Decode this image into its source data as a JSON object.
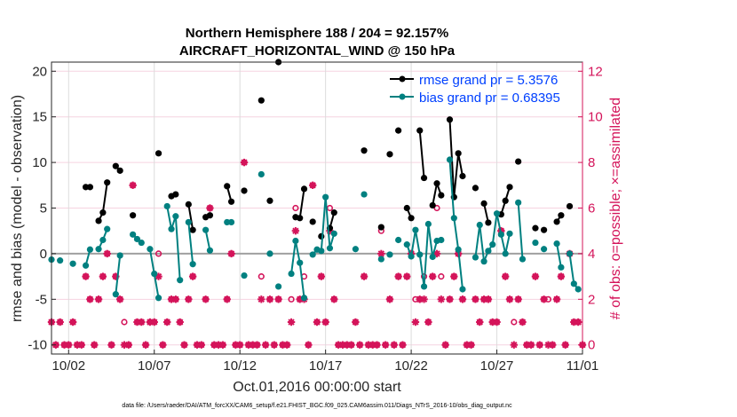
{
  "chart_data": {
    "type": "line",
    "title": "Northern Hemisphere 188 / 204 = 92.157%",
    "subtitle": "AIRCRAFT_HORIZONTAL_WIND @ 150 hPa",
    "xlabel": "Oct.01,2016 00:00:00 start",
    "ylabel": "rmse and bias (model - observation)",
    "ylabel_right": "# of obs: o=possible; ×=assimilated",
    "footnote": "data file: /Users/raeder/DAI/ATM_forcXX/CAM6_setup/f.e21.FHIST_BGC.f09_025.CAM6assim.011/Diags_NTrS_2016-10/obs_diag_output.nc",
    "xlim": [
      "2016-10-01T00:00",
      "2016-11-01T00:00"
    ],
    "x_ticks": [
      {
        "date": "2016-10-02T00:00",
        "label": "10/02"
      },
      {
        "date": "2016-10-07T00:00",
        "label": "10/07"
      },
      {
        "date": "2016-10-12T00:00",
        "label": "10/12"
      },
      {
        "date": "2016-10-17T00:00",
        "label": "10/17"
      },
      {
        "date": "2016-10-22T00:00",
        "label": "10/22"
      },
      {
        "date": "2016-10-27T00:00",
        "label": "10/27"
      },
      {
        "date": "2016-11-01T00:00",
        "label": "11/01"
      }
    ],
    "ylim": [
      -11,
      21
    ],
    "y_ticks": [
      "-10",
      "-5",
      "0",
      "5",
      "10",
      "15",
      "20"
    ],
    "ylim_right": [
      -0.4,
      12.4
    ],
    "y_ticks_right": [
      "0",
      "2",
      "4",
      "6",
      "8",
      "10",
      "12"
    ],
    "grid": true,
    "legend_position": "top-right",
    "colors": {
      "rmse": "#000000",
      "bias": "#008080",
      "obs": "#d4145a",
      "legend_text": "#0040ff",
      "zero_line": "#a0a0a0"
    },
    "series": [
      {
        "name": "rmse grand pr = 5.3576",
        "key": "rmse",
        "points": [
          [
            "2016-10-03T00:00",
            7.3
          ],
          [
            "2016-10-03T06:00",
            7.3
          ],
          [
            "2016-10-03T18:00",
            3.6
          ],
          [
            "2016-10-04T00:00",
            4.5
          ],
          [
            "2016-10-04T06:00",
            7.8
          ],
          [
            "2016-10-04T18:00",
            9.6
          ],
          [
            "2016-10-05T00:00",
            9.1
          ],
          [
            "2016-10-05T18:00",
            4.2
          ],
          [
            "2016-10-07T06:00",
            11.0
          ],
          [
            "2016-10-08T00:00",
            6.3
          ],
          [
            "2016-10-08T06:00",
            6.5
          ],
          [
            "2016-10-09T00:00",
            5.4
          ],
          [
            "2016-10-09T06:00",
            2.6
          ],
          [
            "2016-10-10T00:00",
            4.0
          ],
          [
            "2016-10-10T06:00",
            4.2
          ],
          [
            "2016-10-11T06:00",
            7.4
          ],
          [
            "2016-10-11T12:00",
            5.7
          ],
          [
            "2016-10-12T06:00",
            6.9
          ],
          [
            "2016-10-13T06:00",
            16.8
          ],
          [
            "2016-10-13T18:00",
            5.8
          ],
          [
            "2016-10-14T06:00",
            21.0
          ],
          [
            "2016-10-15T06:00",
            4.0
          ],
          [
            "2016-10-15T12:00",
            3.9
          ],
          [
            "2016-10-15T18:00",
            7.1
          ],
          [
            "2016-10-16T06:00",
            3.5
          ],
          [
            "2016-10-16T18:00",
            1.9
          ],
          [
            "2016-10-17T06:00",
            2.8
          ],
          [
            "2016-10-17T12:00",
            4.5
          ],
          [
            "2016-10-19T06:00",
            11.3
          ],
          [
            "2016-10-20T06:00",
            2.9
          ],
          [
            "2016-10-20T18:00",
            10.9
          ],
          [
            "2016-10-21T06:00",
            13.5
          ],
          [
            "2016-10-21T18:00",
            5.0
          ],
          [
            "2016-10-22T00:00",
            3.9
          ],
          [
            "2016-10-22T12:00",
            13.5
          ],
          [
            "2016-10-22T18:00",
            8.3
          ],
          [
            "2016-10-23T06:00",
            5.3
          ],
          [
            "2016-10-23T12:00",
            7.7
          ],
          [
            "2016-10-23T18:00",
            6.4
          ],
          [
            "2016-10-24T06:00",
            14.7
          ],
          [
            "2016-10-24T12:00",
            6.2
          ],
          [
            "2016-10-24T18:00",
            11.0
          ],
          [
            "2016-10-25T00:00",
            8.5
          ],
          [
            "2016-10-25T18:00",
            7.2
          ],
          [
            "2016-10-26T06:00",
            5.5
          ],
          [
            "2016-10-26T12:00",
            3.4
          ],
          [
            "2016-10-27T06:00",
            4.3
          ],
          [
            "2016-10-27T12:00",
            5.8
          ],
          [
            "2016-10-27T18:00",
            7.3
          ],
          [
            "2016-10-28T06:00",
            10.1
          ],
          [
            "2016-10-29T06:00",
            2.8
          ],
          [
            "2016-10-29T18:00",
            2.6
          ],
          [
            "2016-10-30T12:00",
            3.5
          ],
          [
            "2016-10-30T18:00",
            4.2
          ],
          [
            "2016-10-31T06:00",
            5.2
          ]
        ]
      },
      {
        "name": "bias grand pr = 0.68395",
        "key": "bias",
        "points": [
          [
            "2016-10-01T00:00",
            -0.65
          ],
          [
            "2016-10-01T12:00",
            -0.75
          ],
          [
            "2016-10-02T06:00",
            -1.1
          ],
          [
            "2016-10-03T00:00",
            -1.3
          ],
          [
            "2016-10-03T06:00",
            0.45
          ],
          [
            "2016-10-03T18:00",
            0.5
          ],
          [
            "2016-10-04T00:00",
            1.5
          ],
          [
            "2016-10-04T06:00",
            2.7
          ],
          [
            "2016-10-04T18:00",
            -4.45
          ],
          [
            "2016-10-05T00:00",
            -0.2
          ],
          [
            "2016-10-05T18:00",
            2.1
          ],
          [
            "2016-10-06T00:00",
            1.6
          ],
          [
            "2016-10-06T06:00",
            1.2
          ],
          [
            "2016-10-06T18:00",
            0.5
          ],
          [
            "2016-10-07T00:00",
            -2.2
          ],
          [
            "2016-10-07T06:00",
            -4.85
          ],
          [
            "2016-10-07T18:00",
            5.2
          ],
          [
            "2016-10-08T00:00",
            2.7
          ],
          [
            "2016-10-08T06:00",
            4.1
          ],
          [
            "2016-10-08T12:00",
            -2.9
          ],
          [
            "2016-10-09T00:00",
            3.45
          ],
          [
            "2016-10-09T06:00",
            -1.15
          ],
          [
            "2016-10-10T00:00",
            2.6
          ],
          [
            "2016-10-10T06:00",
            0.35
          ],
          [
            "2016-10-11T06:00",
            3.45
          ],
          [
            "2016-10-11T12:00",
            3.45
          ],
          [
            "2016-10-12T06:00",
            -2.4
          ],
          [
            "2016-10-13T06:00",
            8.7
          ],
          [
            "2016-10-13T18:00",
            0.0
          ],
          [
            "2016-10-14T06:00",
            -3.6
          ],
          [
            "2016-10-15T00:00",
            -2.2
          ],
          [
            "2016-10-15T06:00",
            1.4
          ],
          [
            "2016-10-15T12:00",
            -1.0
          ],
          [
            "2016-10-15T18:00",
            -4.85
          ],
          [
            "2016-10-16T06:00",
            -0.1
          ],
          [
            "2016-10-16T12:00",
            0.45
          ],
          [
            "2016-10-16T18:00",
            0.3
          ],
          [
            "2016-10-17T00:00",
            6.2
          ],
          [
            "2016-10-17T06:00",
            0.6
          ],
          [
            "2016-10-17T12:00",
            2.2
          ],
          [
            "2016-10-18T18:00",
            0.5
          ],
          [
            "2016-10-19T06:00",
            6.5
          ],
          [
            "2016-10-20T06:00",
            -0.6
          ],
          [
            "2016-10-20T18:00",
            -0.1
          ],
          [
            "2016-10-21T06:00",
            1.5
          ],
          [
            "2016-10-21T18:00",
            1.0
          ],
          [
            "2016-10-22T00:00",
            -0.3
          ],
          [
            "2016-10-22T06:00",
            2.6
          ],
          [
            "2016-10-22T12:00",
            -0.1
          ],
          [
            "2016-10-22T18:00",
            -3.6
          ],
          [
            "2016-10-23T00:00",
            3.25
          ],
          [
            "2016-10-23T06:00",
            -0.35
          ],
          [
            "2016-10-23T12:00",
            1.4
          ],
          [
            "2016-10-23T18:00",
            1.5
          ],
          [
            "2016-10-24T06:00",
            10.3
          ],
          [
            "2016-10-24T12:00",
            3.9
          ],
          [
            "2016-10-24T18:00",
            0.45
          ],
          [
            "2016-10-25T00:00",
            -3.9
          ],
          [
            "2016-10-25T18:00",
            -0.4
          ],
          [
            "2016-10-26T00:00",
            3.15
          ],
          [
            "2016-10-26T06:00",
            -0.85
          ],
          [
            "2016-10-26T12:00",
            0.3
          ],
          [
            "2016-10-26T18:00",
            1.0
          ],
          [
            "2016-10-27T00:00",
            4.4
          ],
          [
            "2016-10-27T06:00",
            2.1
          ],
          [
            "2016-10-27T12:00",
            0.0
          ],
          [
            "2016-10-27T18:00",
            2.2
          ],
          [
            "2016-10-28T06:00",
            5.6
          ],
          [
            "2016-10-28T12:00",
            -0.6
          ],
          [
            "2016-10-29T06:00",
            1.2
          ],
          [
            "2016-10-29T18:00",
            0.5
          ],
          [
            "2016-10-30T12:00",
            1.1
          ],
          [
            "2016-10-30T18:00",
            -1.5
          ],
          [
            "2016-10-31T06:00",
            0.0
          ],
          [
            "2016-10-31T12:00",
            -3.3
          ],
          [
            "2016-10-31T18:00",
            -3.9
          ]
        ]
      }
    ],
    "obs_counts": {
      "columns": [
        "time",
        "possible",
        "assimilated"
      ],
      "start": "2016-10-01T00:00",
      "step_hours": 6,
      "possible": [
        1,
        0,
        1,
        0,
        0,
        1,
        0,
        0,
        3,
        2,
        0,
        2,
        3,
        4,
        0,
        3,
        2,
        1,
        0,
        7,
        1,
        1,
        0,
        1,
        1,
        4,
        0,
        1,
        2,
        2,
        1,
        0,
        2,
        3,
        0,
        0,
        2,
        6,
        0,
        0,
        0,
        2,
        4,
        0,
        0,
        8,
        0,
        0,
        0,
        3,
        0,
        2,
        0,
        2,
        0,
        0,
        2,
        6,
        2,
        3,
        0,
        7,
        1,
        3,
        1,
        6,
        2,
        0,
        0,
        0,
        0,
        1,
        0,
        3,
        0,
        0,
        0,
        5,
        0,
        2,
        0,
        3,
        0,
        3,
        4,
        2,
        2,
        3,
        1,
        3,
        6,
        3,
        0,
        2,
        3,
        4,
        2,
        0,
        0,
        2,
        1,
        2,
        2,
        1,
        1,
        5,
        3,
        2,
        1,
        2,
        1,
        0,
        0,
        3,
        0,
        2,
        2,
        0,
        2,
        3,
        0,
        4,
        1,
        1,
        0
      ],
      "assimilated": [
        1,
        0,
        1,
        0,
        0,
        1,
        0,
        0,
        3,
        2,
        0,
        2,
        3,
        4,
        0,
        3,
        2,
        0,
        0,
        7,
        1,
        1,
        0,
        1,
        1,
        3,
        0,
        1,
        2,
        2,
        1,
        0,
        2,
        3,
        0,
        0,
        2,
        6,
        0,
        0,
        0,
        2,
        4,
        0,
        0,
        8,
        0,
        0,
        0,
        2,
        0,
        2,
        0,
        2,
        0,
        0,
        1,
        5,
        2,
        2,
        0,
        7,
        1,
        3,
        1,
        5,
        2,
        0,
        0,
        0,
        0,
        1,
        0,
        3,
        0,
        0,
        0,
        4,
        0,
        2,
        0,
        3,
        0,
        3,
        4,
        1,
        2,
        2,
        1,
        3,
        4,
        2,
        0,
        2,
        3,
        4,
        2,
        0,
        0,
        2,
        1,
        2,
        2,
        1,
        1,
        5,
        3,
        2,
        0,
        2,
        1,
        0,
        0,
        3,
        0,
        2,
        0,
        0,
        2,
        3,
        0,
        4,
        1,
        1,
        0
      ]
    }
  }
}
